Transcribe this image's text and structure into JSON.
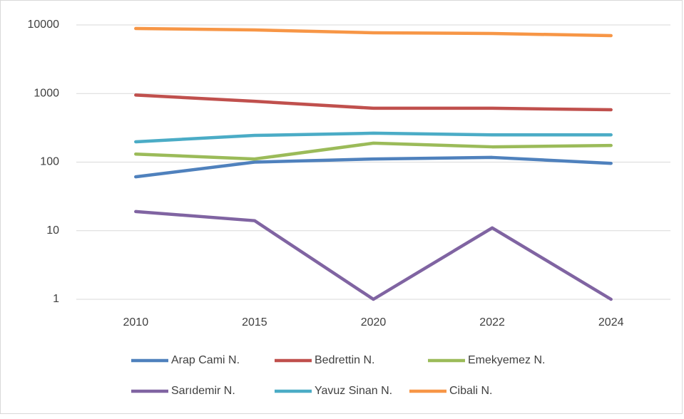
{
  "chart_data": {
    "type": "line",
    "log_scale": true,
    "grid": true,
    "legend": "bottom",
    "categories": [
      "2010",
      "2015",
      "2020",
      "2022",
      "2024"
    ],
    "ylim": [
      1,
      10000
    ],
    "yticks": [
      1,
      10,
      100,
      1000,
      10000
    ],
    "series": [
      {
        "name": "Arap Cami N.",
        "color": "#4f81bd",
        "values": [
          61,
          100,
          111,
          117,
          96
        ]
      },
      {
        "name": "Bedrettin N.",
        "color": "#c0504d",
        "values": [
          950,
          770,
          610,
          610,
          580
        ]
      },
      {
        "name": "Emekyemez N.",
        "color": "#9bbb59",
        "values": [
          131,
          111,
          189,
          167,
          175
        ]
      },
      {
        "name": "Sarıdemir N.",
        "color": "#8064a2",
        "values": [
          19,
          14,
          1,
          11,
          1
        ]
      },
      {
        "name": "Yavuz Sinan N.",
        "color": "#4bacc6",
        "values": [
          198,
          245,
          264,
          250,
          250
        ]
      },
      {
        "name": "Cibali N.",
        "color": "#f79646",
        "values": [
          8870,
          8450,
          7690,
          7500,
          6990
        ]
      }
    ]
  }
}
